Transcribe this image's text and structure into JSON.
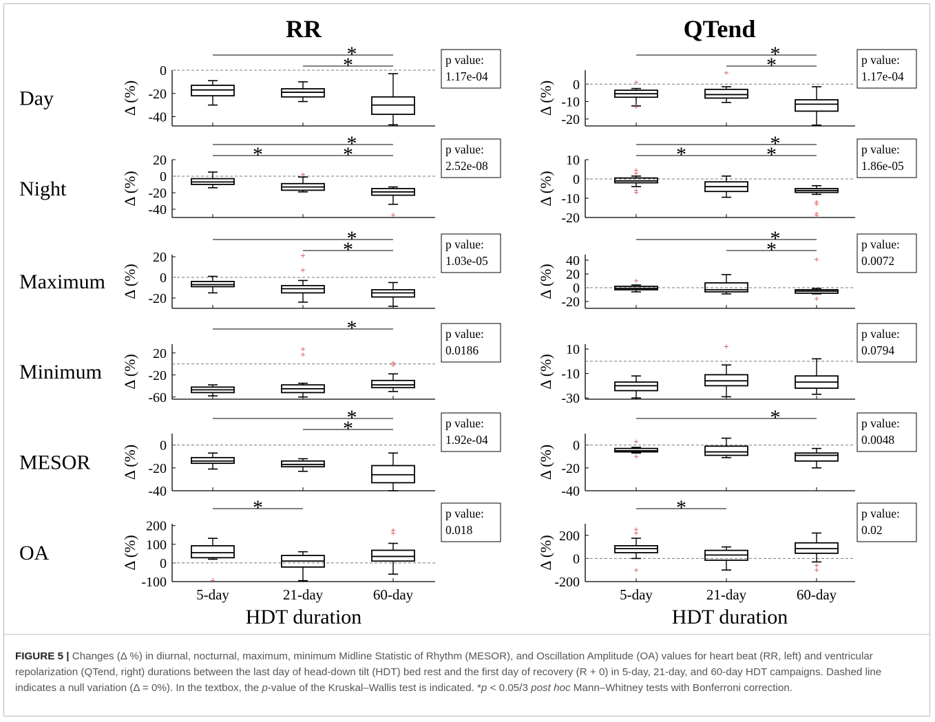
{
  "chart_data": {
    "type": "boxplot",
    "columns": [
      {
        "key": "rr",
        "title": "RR",
        "xlabel": "HDT duration"
      },
      {
        "key": "qt",
        "title": "QTend",
        "xlabel": "HDT duration"
      }
    ],
    "categories": [
      "5-day",
      "21-day",
      "60-day"
    ],
    "ylabel": "Δ (%)",
    "pvalue_label": "p value:",
    "sig_marker": "*",
    "rows": [
      {
        "name": "Day",
        "rr": {
          "ylim": [
            -48,
            0
          ],
          "yticks": [
            0,
            -20,
            -40
          ],
          "pvalue": "1.17e-04",
          "boxes": [
            {
              "wl": -30,
              "q1": -22,
              "med": -17,
              "q3": -13,
              "wh": -9,
              "outliers": []
            },
            {
              "wl": -27,
              "q1": -23,
              "med": -19,
              "q3": -16,
              "wh": -10,
              "outliers": []
            },
            {
              "wl": -47,
              "q1": -38,
              "med": -30,
              "q3": -23,
              "wh": -3,
              "outliers": []
            }
          ],
          "sig": [
            [
              0,
              2
            ],
            [
              1,
              2
            ]
          ]
        },
        "qt": {
          "ylim": [
            -24,
            8
          ],
          "yticks": [
            0,
            -10,
            -20
          ],
          "pvalue": "1.17e-04",
          "boxes": [
            {
              "wl": -12.5,
              "q1": -7.5,
              "med": -5.5,
              "q3": -3.5,
              "wh": -2.5,
              "outliers": [
                1,
                -13
              ]
            },
            {
              "wl": -10.5,
              "q1": -8,
              "med": -6,
              "q3": -3,
              "wh": -1.5,
              "outliers": [
                6.5
              ]
            },
            {
              "wl": -23.5,
              "q1": -15.5,
              "med": -11.5,
              "q3": -9,
              "wh": -1.5,
              "outliers": []
            }
          ],
          "sig": [
            [
              0,
              2
            ],
            [
              1,
              2
            ]
          ]
        }
      },
      {
        "name": "Night",
        "rr": {
          "ylim": [
            -50,
            20
          ],
          "yticks": [
            20,
            0,
            -20,
            -40
          ],
          "pvalue": "2.52e-08",
          "boxes": [
            {
              "wl": -14,
              "q1": -10,
              "med": -7,
              "q3": -3,
              "wh": 5,
              "outliers": []
            },
            {
              "wl": -19,
              "q1": -17,
              "med": -13,
              "q3": -9,
              "wh": -1,
              "outliers": [
                2
              ]
            },
            {
              "wl": -34,
              "q1": -23,
              "med": -19,
              "q3": -15,
              "wh": -13,
              "outliers": [
                -47
              ]
            }
          ],
          "sig": [
            [
              0,
              1
            ],
            [
              0,
              2
            ],
            [
              1,
              2
            ]
          ]
        },
        "qt": {
          "ylim": [
            -20,
            10
          ],
          "yticks": [
            10,
            0,
            -10,
            -20
          ],
          "pvalue": "1.86e-05",
          "boxes": [
            {
              "wl": -4,
              "q1": -2,
              "med": -1,
              "q3": 0.5,
              "wh": 1.5,
              "outliers": [
                4.5,
                3,
                -6,
                -7
              ]
            },
            {
              "wl": -9.5,
              "q1": -6.5,
              "med": -4,
              "q3": -1.5,
              "wh": 1.5,
              "outliers": []
            },
            {
              "wl": -8,
              "q1": -7,
              "med": -6,
              "q3": -5,
              "wh": -3.5,
              "outliers": [
                -12,
                -13,
                -18,
                -19
              ]
            }
          ],
          "sig": [
            [
              0,
              1
            ],
            [
              0,
              2
            ],
            [
              1,
              2
            ]
          ]
        }
      },
      {
        "name": "Maximum",
        "rr": {
          "ylim": [
            -30,
            22
          ],
          "yticks": [
            20,
            0,
            -20
          ],
          "pvalue": "1.03e-05",
          "boxes": [
            {
              "wl": -15,
              "q1": -9,
              "med": -7,
              "q3": -4,
              "wh": 1,
              "outliers": []
            },
            {
              "wl": -24,
              "q1": -15,
              "med": -11,
              "q3": -8,
              "wh": -3,
              "outliers": [
                21,
                7
              ]
            },
            {
              "wl": -28,
              "q1": -19,
              "med": -15,
              "q3": -12,
              "wh": -5,
              "outliers": []
            }
          ],
          "sig": [
            [
              0,
              2
            ],
            [
              1,
              2
            ]
          ]
        },
        "qt": {
          "ylim": [
            -30,
            48
          ],
          "yticks": [
            40,
            20,
            0,
            -20
          ],
          "pvalue": "0.0072",
          "boxes": [
            {
              "wl": -6,
              "q1": -3,
              "med": -1,
              "q3": 2,
              "wh": 4,
              "outliers": [
                10
              ]
            },
            {
              "wl": -9,
              "q1": -6,
              "med": -3,
              "q3": 7,
              "wh": 19,
              "outliers": []
            },
            {
              "wl": -9,
              "q1": -8,
              "med": -5,
              "q3": -3,
              "wh": -1,
              "outliers": [
                41,
                -16
              ]
            }
          ],
          "sig": [
            [
              0,
              2
            ],
            [
              1,
              2
            ]
          ]
        }
      },
      {
        "name": "Minimum",
        "rr": {
          "ylim": [
            -64,
            36
          ],
          "yticks": [
            20,
            -20,
            -60
          ],
          "pvalue": "0.0186",
          "boxes": [
            {
              "wl": -58,
              "q1": -52,
              "med": -47,
              "q3": -42,
              "wh": -38,
              "outliers": []
            },
            {
              "wl": -60,
              "q1": -52,
              "med": -45,
              "q3": -38,
              "wh": -35,
              "outliers": [
                27,
                17
              ]
            },
            {
              "wl": -50,
              "q1": -43,
              "med": -38,
              "q3": -30,
              "wh": -18,
              "outliers": [
                2,
                -2
              ]
            }
          ],
          "sig": [
            [
              0,
              2
            ]
          ]
        },
        "qt": {
          "ylim": [
            -31,
            14
          ],
          "yticks": [
            10,
            -10,
            -30
          ],
          "pvalue": "0.0794",
          "boxes": [
            {
              "wl": -30,
              "q1": -24,
              "med": -20,
              "q3": -17,
              "wh": -12,
              "outliers": []
            },
            {
              "wl": -29,
              "q1": -20,
              "med": -16,
              "q3": -11,
              "wh": -3,
              "outliers": [
                12
              ]
            },
            {
              "wl": -27,
              "q1": -22,
              "med": -17,
              "q3": -12,
              "wh": 2,
              "outliers": []
            }
          ],
          "sig": []
        }
      },
      {
        "name": "MESOR",
        "rr": {
          "ylim": [
            -40,
            10
          ],
          "yticks": [
            0,
            -20,
            -40
          ],
          "pvalue": "1.92e-04",
          "boxes": [
            {
              "wl": -21,
              "q1": -16,
              "med": -14,
              "q3": -11,
              "wh": -7,
              "outliers": []
            },
            {
              "wl": -23,
              "q1": -19,
              "med": -17,
              "q3": -14,
              "wh": -12,
              "outliers": []
            },
            {
              "wl": -40,
              "q1": -33,
              "med": -26,
              "q3": -18,
              "wh": -7,
              "outliers": []
            }
          ],
          "sig": [
            [
              0,
              2
            ],
            [
              1,
              2
            ]
          ]
        },
        "qt": {
          "ylim": [
            -40,
            10
          ],
          "yticks": [
            0,
            -20,
            -40
          ],
          "pvalue": "0.0048",
          "boxes": [
            {
              "wl": -7,
              "q1": -6,
              "med": -5,
              "q3": -3,
              "wh": -2,
              "outliers": [
                3,
                -10
              ]
            },
            {
              "wl": -11,
              "q1": -9,
              "med": -6,
              "q3": -1,
              "wh": 6,
              "outliers": []
            },
            {
              "wl": -20,
              "q1": -14,
              "med": -9,
              "q3": -7,
              "wh": -3,
              "outliers": []
            }
          ],
          "sig": [
            [
              0,
              2
            ]
          ]
        }
      },
      {
        "name": "OA",
        "rr": {
          "ylim": [
            -100,
            210
          ],
          "yticks": [
            200,
            100,
            0,
            -100
          ],
          "pvalue": "0.018",
          "boxes": [
            {
              "wl": 20,
              "q1": 28,
              "med": 55,
              "q3": 92,
              "wh": 132,
              "outliers": [
                -95
              ]
            },
            {
              "wl": -95,
              "q1": -22,
              "med": 10,
              "q3": 40,
              "wh": 60,
              "outliers": []
            },
            {
              "wl": -60,
              "q1": 10,
              "med": 35,
              "q3": 68,
              "wh": 105,
              "outliers": [
                175,
                160
              ]
            }
          ],
          "sig": [
            [
              0,
              1
            ]
          ]
        },
        "qt": {
          "ylim": [
            -200,
            300
          ],
          "yticks": [
            200,
            0,
            -200
          ],
          "pvalue": "0.02",
          "boxes": [
            {
              "wl": 0,
              "q1": 50,
              "med": 85,
              "q3": 110,
              "wh": 175,
              "outliers": [
                250,
                220,
                -100
              ]
            },
            {
              "wl": -100,
              "q1": -15,
              "med": 30,
              "q3": 70,
              "wh": 100,
              "outliers": []
            },
            {
              "wl": -30,
              "q1": 45,
              "med": 85,
              "q3": 135,
              "wh": 220,
              "outliers": [
                -60,
                -100
              ]
            }
          ],
          "sig": [
            [
              0,
              1
            ]
          ]
        }
      }
    ]
  },
  "caption": {
    "label": "FIGURE 5 |",
    "t1": " Changes (Δ %) in diurnal, nocturnal, maximum, minimum Midline Statistic of Rhythm (MESOR), and Oscillation Amplitude (OA) values for heart beat (RR, left) and ventricular repolarization (QTend, right) durations between the last day of head-down tilt (HDT) bed rest and the first day of recovery (R + 0) in 5-day, 21-day, and 60-day HDT campaigns. Dashed line indicates a null variation (Δ = 0%). In the textbox, the ",
    "p_italic": "p",
    "t2": "-value of the Kruskal–Wallis test is indicated. *",
    "p2_italic": "p",
    "t3": " < 0.05/3 ",
    "posthoc_italic": "post hoc",
    "t4": " Mann–Whitney tests with Bonferroni correction."
  }
}
